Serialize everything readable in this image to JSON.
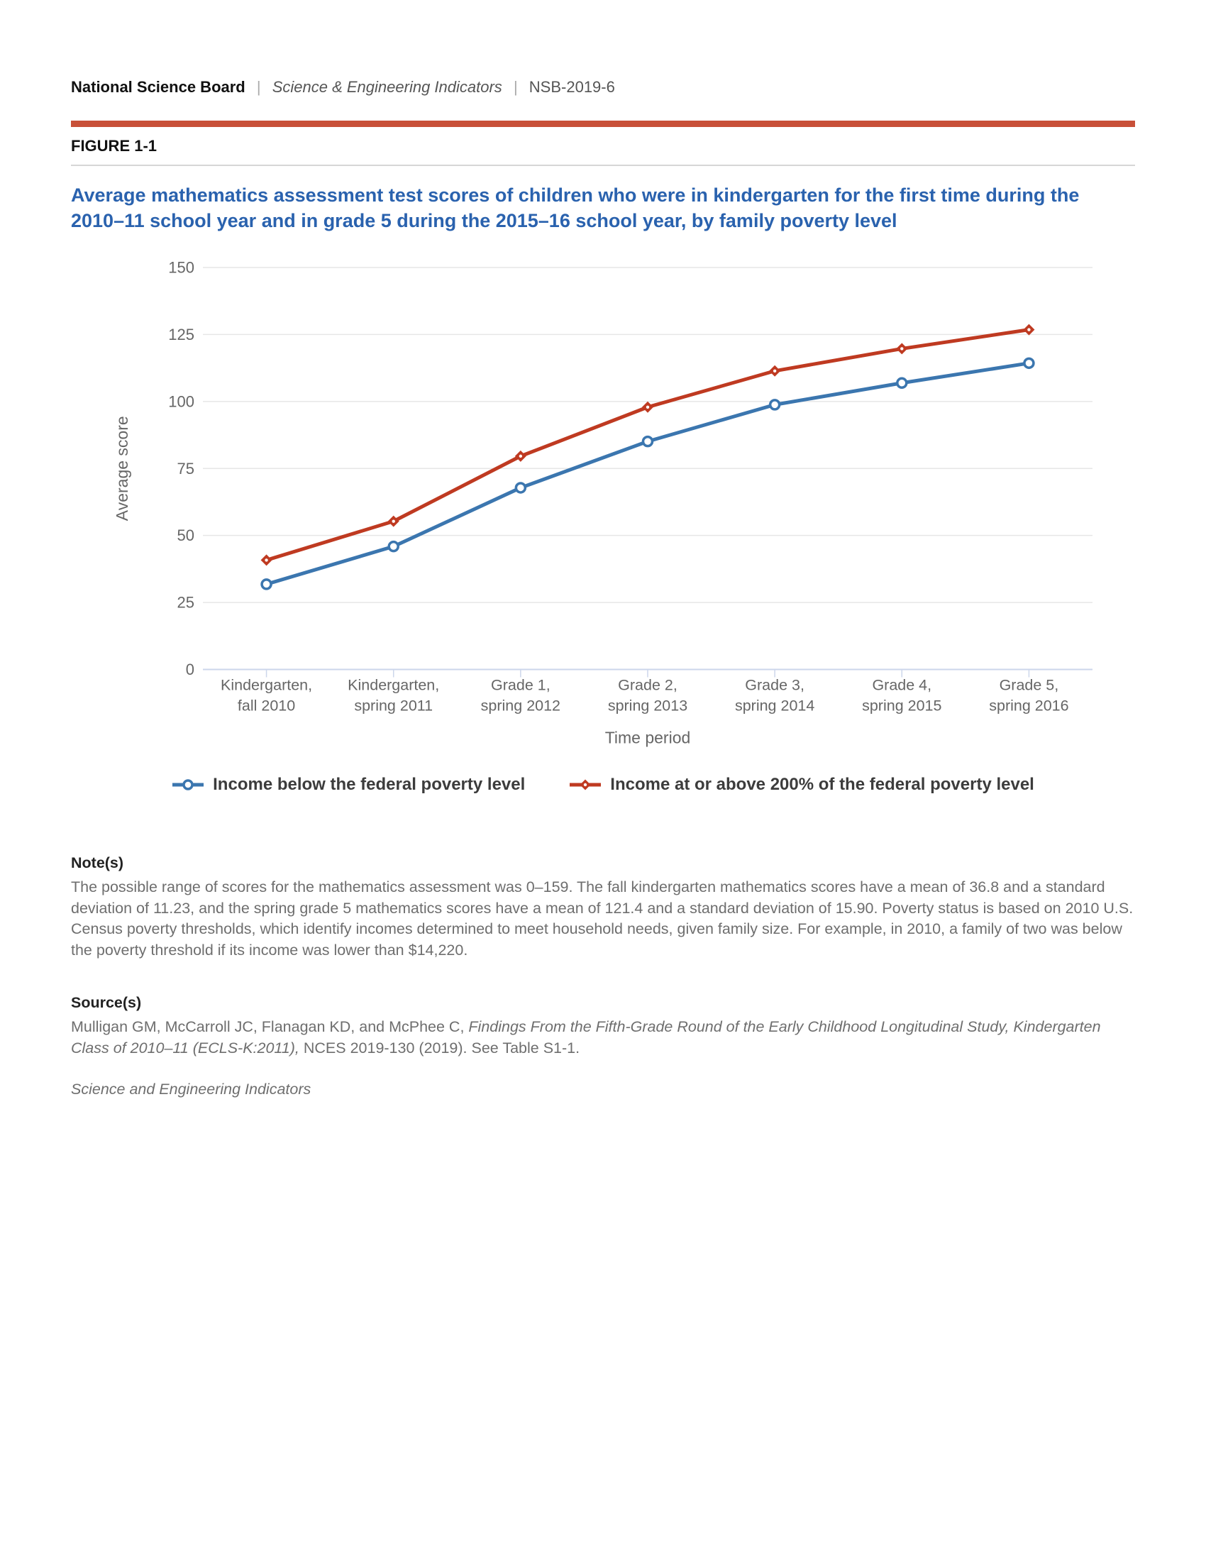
{
  "header": {
    "org": "National Science Board",
    "separator": "|",
    "publication": "Science & Engineering Indicators",
    "report_id": "NSB-2019-6"
  },
  "figure": {
    "label": "FIGURE 1-1",
    "title": "Average mathematics assessment test scores of children who were in kindergarten for the first time during the 2010–11 school year and in grade 5 during the 2015–16 school year, by family poverty level"
  },
  "chart_data": {
    "type": "line",
    "categories": [
      "Kindergarten, fall 2010",
      "Kindergarten, spring 2011",
      "Grade 1, spring 2012",
      "Grade 2, spring 2013",
      "Grade 3, spring 2014",
      "Grade 4, spring 2015",
      "Grade 5, spring 2016"
    ],
    "series": [
      {
        "name": "Income below the federal poverty level",
        "color": "#3b76af",
        "marker": "circle",
        "values": [
          31.8,
          45.9,
          67.8,
          85.1,
          98.8,
          106.9,
          114.3
        ]
      },
      {
        "name": "Income at or above 200% of the federal poverty level",
        "color": "#bf3a21",
        "marker": "diamond",
        "values": [
          40.8,
          55.3,
          79.6,
          97.9,
          111.4,
          119.7,
          126.8
        ]
      }
    ],
    "xlabel": "Time period",
    "ylabel": "Average score",
    "ylim": [
      0,
      150
    ],
    "ytick_step": 25,
    "yticks": [
      0,
      25,
      50,
      75,
      100,
      125,
      150
    ],
    "grid": true,
    "legend_position": "bottom"
  },
  "notes": {
    "heading": "Note(s)",
    "body": "The possible range of scores for the mathematics assessment was 0–159. The fall kindergarten mathematics scores have a mean of 36.8 and a standard deviation of 11.23, and the spring grade 5 mathematics scores have a mean of 121.4 and a standard deviation of 15.90. Poverty status is based on 2010 U.S. Census poverty thresholds, which identify incomes determined to meet household needs, given family size. For example, in 2010, a family of two was below the poverty threshold if its income was lower than $14,220."
  },
  "sources": {
    "heading": "Source(s)",
    "citation_plain_1": "Mulligan GM, McCarroll JC, Flanagan KD, and McPhee C, ",
    "citation_italic": "Findings From the Fifth-Grade Round of the Early Childhood Longitudinal Study, Kindergarten Class of 2010–11 (ECLS-K:2011),",
    "citation_plain_2": " NCES 2019-130 (2019). See Table S1-1.",
    "footer_italic": "Science and Engineering Indicators"
  },
  "colors": {
    "accent_bar": "#c85038",
    "title": "#2a62ae",
    "gridline": "#e6e6e6",
    "axis_line": "#ccd6eb",
    "tick_label": "#666666",
    "note_text": "#6e6e6e",
    "legend_text": "#3c3c3c"
  }
}
